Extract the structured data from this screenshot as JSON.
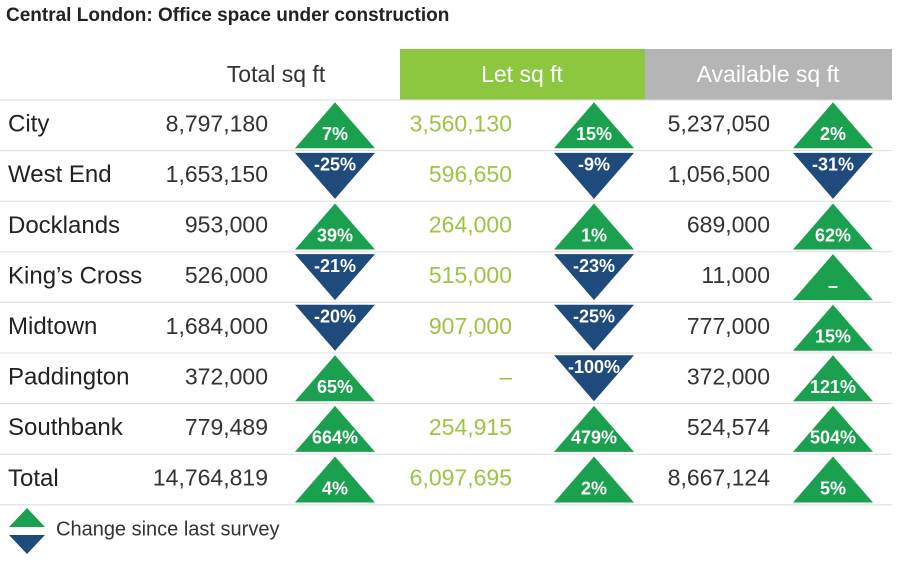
{
  "title": "Central London: Office space under construction",
  "table": {
    "headers": [
      "Total sq ft",
      "Let sq ft",
      "Available sq ft"
    ],
    "rows": [
      [
        "City",
        "8,797,180",
        {
          "label": "7%",
          "dir": "up"
        },
        "3,560,130",
        {
          "label": "15%",
          "dir": "up"
        },
        "5,237,050",
        {
          "label": "2%",
          "dir": "up"
        }
      ],
      [
        "West End",
        "1,653,150",
        {
          "label": "-25%",
          "dir": "down"
        },
        "596,650",
        {
          "label": "-9%",
          "dir": "down"
        },
        "1,056,500",
        {
          "label": "-31%",
          "dir": "down"
        }
      ],
      [
        "Docklands",
        "953,000",
        {
          "label": "39%",
          "dir": "up"
        },
        "264,000",
        {
          "label": "1%",
          "dir": "up"
        },
        "689,000",
        {
          "label": "62%",
          "dir": "up"
        }
      ],
      [
        "King’s Cross",
        "526,000",
        {
          "label": "-21%",
          "dir": "down"
        },
        "515,000",
        {
          "label": "-23%",
          "dir": "down"
        },
        "11,000",
        {
          "label": "–",
          "dir": "up"
        }
      ],
      [
        "Midtown",
        "1,684,000",
        {
          "label": "-20%",
          "dir": "down"
        },
        "907,000",
        {
          "label": "-25%",
          "dir": "down"
        },
        "777,000",
        {
          "label": "15%",
          "dir": "up"
        }
      ],
      [
        "Paddington",
        "372,000",
        {
          "label": "65%",
          "dir": "up"
        },
        "–",
        {
          "label": "-100%",
          "dir": "down"
        },
        "372,000",
        {
          "label": "121%",
          "dir": "up"
        }
      ],
      [
        "Southbank",
        "779,489",
        {
          "label": "664%",
          "dir": "up"
        },
        "254,915",
        {
          "label": "479%",
          "dir": "up"
        },
        "524,574",
        {
          "label": "504%",
          "dir": "up"
        }
      ],
      [
        "Total",
        "14,764,819",
        {
          "label": "4%",
          "dir": "up"
        },
        "6,097,695",
        {
          "label": "2%",
          "dir": "up"
        },
        "8,667,124",
        {
          "label": "5%",
          "dir": "up"
        }
      ]
    ]
  },
  "legend": "Change since last survey",
  "colors": {
    "up": "#1aa04f",
    "down": "#1e4a7c",
    "let_header": "#8dc63f",
    "available_header": "#b5b5b5",
    "let_text": "#9cc545"
  }
}
